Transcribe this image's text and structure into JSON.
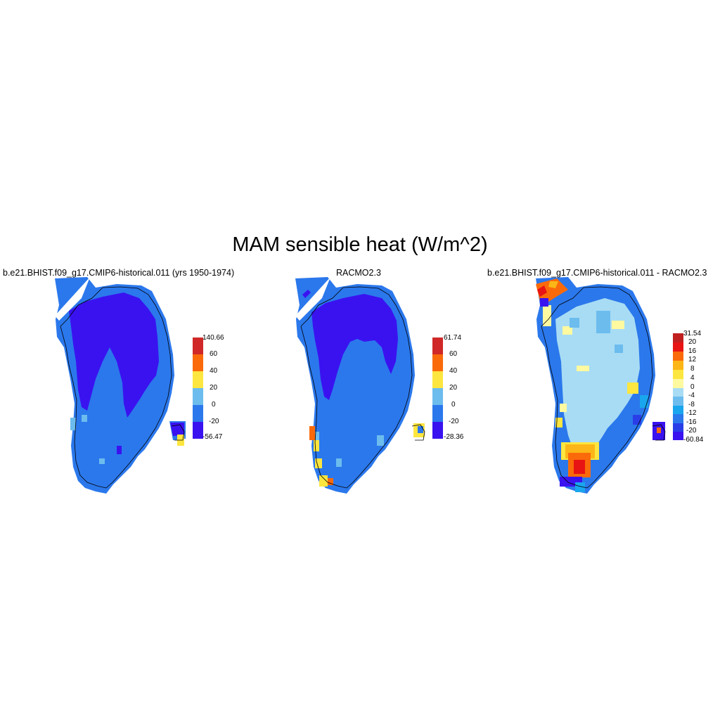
{
  "title": "MAM sensible heat (W/m^2)",
  "panels": [
    {
      "id": "model",
      "title": "b.e21.BHIST.f09_g17.CMIP6-historical.011 (yrs 1950-1974)",
      "colorbar": {
        "colors": [
          "#3a12f0",
          "#2b78ec",
          "#6cbcee",
          "#fde63f",
          "#fa6a0a",
          "#d02828"
        ],
        "labels": [
          "140.66",
          "60",
          "40",
          "20",
          "0",
          "-20",
          "-56.47"
        ]
      }
    },
    {
      "id": "racmo",
      "title": "RACMO2.3",
      "colorbar": {
        "colors": [
          "#3a12f0",
          "#2b78ec",
          "#6cbcee",
          "#fde63f",
          "#fa6a0a",
          "#d02828"
        ],
        "labels": [
          "61.74",
          "60",
          "40",
          "20",
          "0",
          "-20",
          "-28.36"
        ]
      }
    },
    {
      "id": "difference",
      "title": "b.e21.BHIST.f09_g17.CMIP6-historical.011 - RACMO2.3",
      "colorbar": {
        "colors": [
          "#3a12f0",
          "#2a3ee8",
          "#2b78ec",
          "#19a6ee",
          "#6cbcee",
          "#a8dcf4",
          "#fff9a0",
          "#fde63f",
          "#fcb617",
          "#fa6a0a",
          "#e81414",
          "#c02020"
        ],
        "labels": [
          "31.54",
          "20",
          "16",
          "12",
          "8",
          "4",
          "0",
          "-4",
          "-8",
          "-12",
          "-16",
          "-20",
          "-60.84"
        ]
      }
    }
  ]
}
